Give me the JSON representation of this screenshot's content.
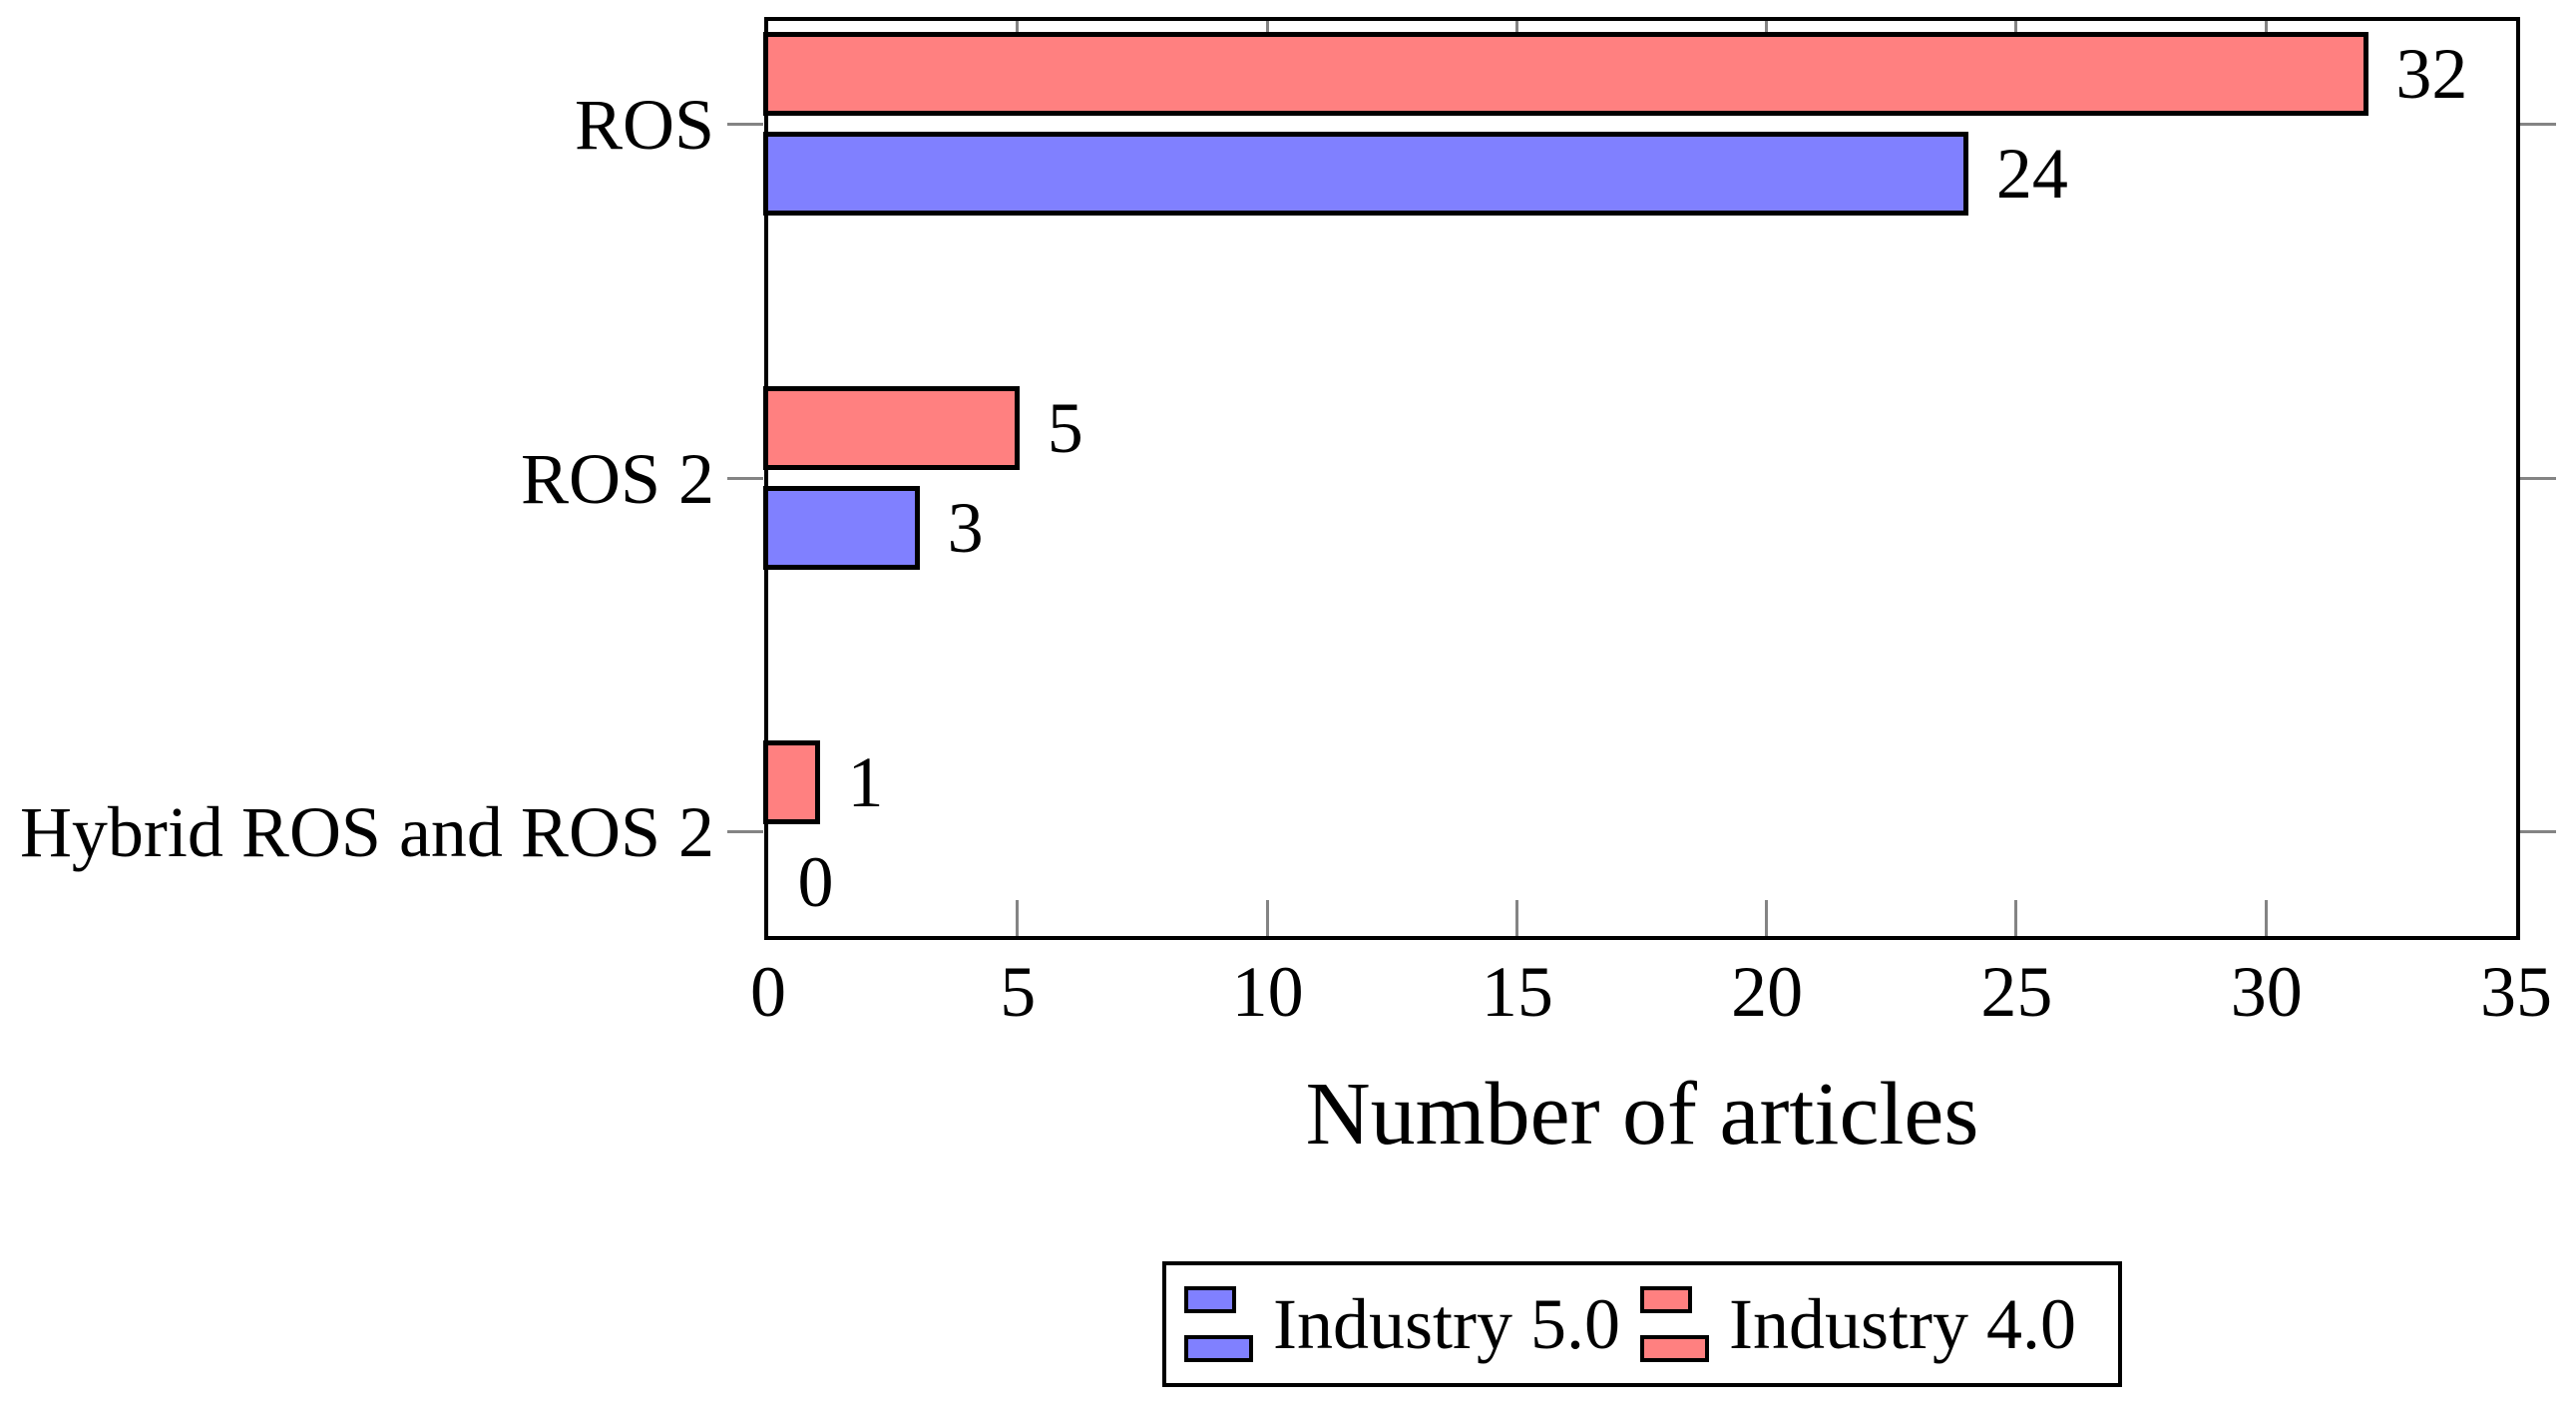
{
  "figure": {
    "legend": {
      "entries": [
        {
          "label": "Industry 5.0",
          "color": "#8080FF"
        },
        {
          "label": "Industry 4.0",
          "color": "#FF8080"
        }
      ]
    }
  },
  "chart_data": {
    "type": "bar",
    "orientation": "horizontal",
    "title": "",
    "xlabel": "Number of articles",
    "ylabel": "",
    "categories": [
      "ROS",
      "ROS 2",
      "Hybrid ROS and ROS 2"
    ],
    "series": [
      {
        "name": "Industry 4.0",
        "color": "#FF8080",
        "values": [
          32,
          5,
          1
        ]
      },
      {
        "name": "Industry 5.0",
        "color": "#8080FF",
        "values": [
          24,
          3,
          0
        ]
      }
    ],
    "xlim": [
      0,
      35
    ],
    "xticks": [
      0,
      5,
      10,
      15,
      20,
      25,
      30,
      35
    ],
    "bar_value_labels_shown": true,
    "grid": false,
    "legend_position": "below-chart",
    "bar_fill_colors": {
      "Industry 4.0": "#FF8080",
      "Industry 5.0": "#8080FF"
    },
    "bar_outline_color": "#000000",
    "axis_frame_color": "#000000",
    "tick_color": "#848484"
  }
}
